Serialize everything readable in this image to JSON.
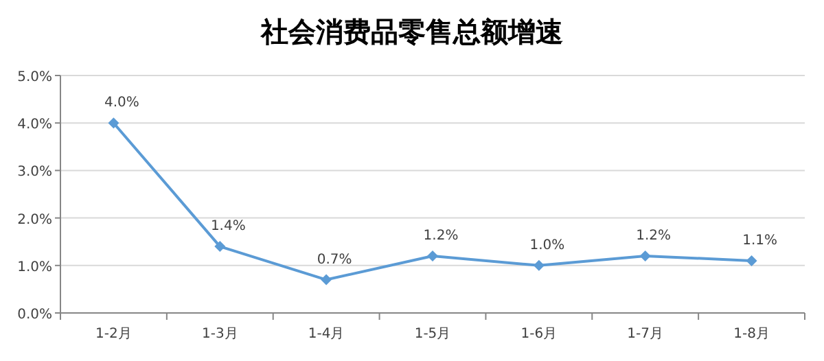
{
  "chart_data": {
    "type": "line",
    "title": "社会消费品零售总额增速",
    "categories": [
      "1-2月",
      "1-3月",
      "1-4月",
      "1-5月",
      "1-6月",
      "1-7月",
      "1-8月"
    ],
    "series": [
      {
        "color": "#5b9bd5",
        "values": [
          4.0,
          1.4,
          0.7,
          1.2,
          1.0,
          1.2,
          1.1
        ],
        "value_labels": [
          "4.0%",
          "1.4%",
          "0.7%",
          "1.2%",
          "1.0%",
          "1.2%",
          "1.1%"
        ]
      }
    ],
    "ylim": [
      0,
      5
    ],
    "yticks": [
      {
        "value": 0,
        "label": "0.0%"
      },
      {
        "value": 1,
        "label": "1.0%"
      },
      {
        "value": 2,
        "label": "2.0%"
      },
      {
        "value": 3,
        "label": "3.0%"
      },
      {
        "value": 4,
        "label": "4.0%"
      },
      {
        "value": 5,
        "label": "5.0%"
      }
    ],
    "grid": "y",
    "marker": "diamond",
    "line_style": "solid"
  }
}
